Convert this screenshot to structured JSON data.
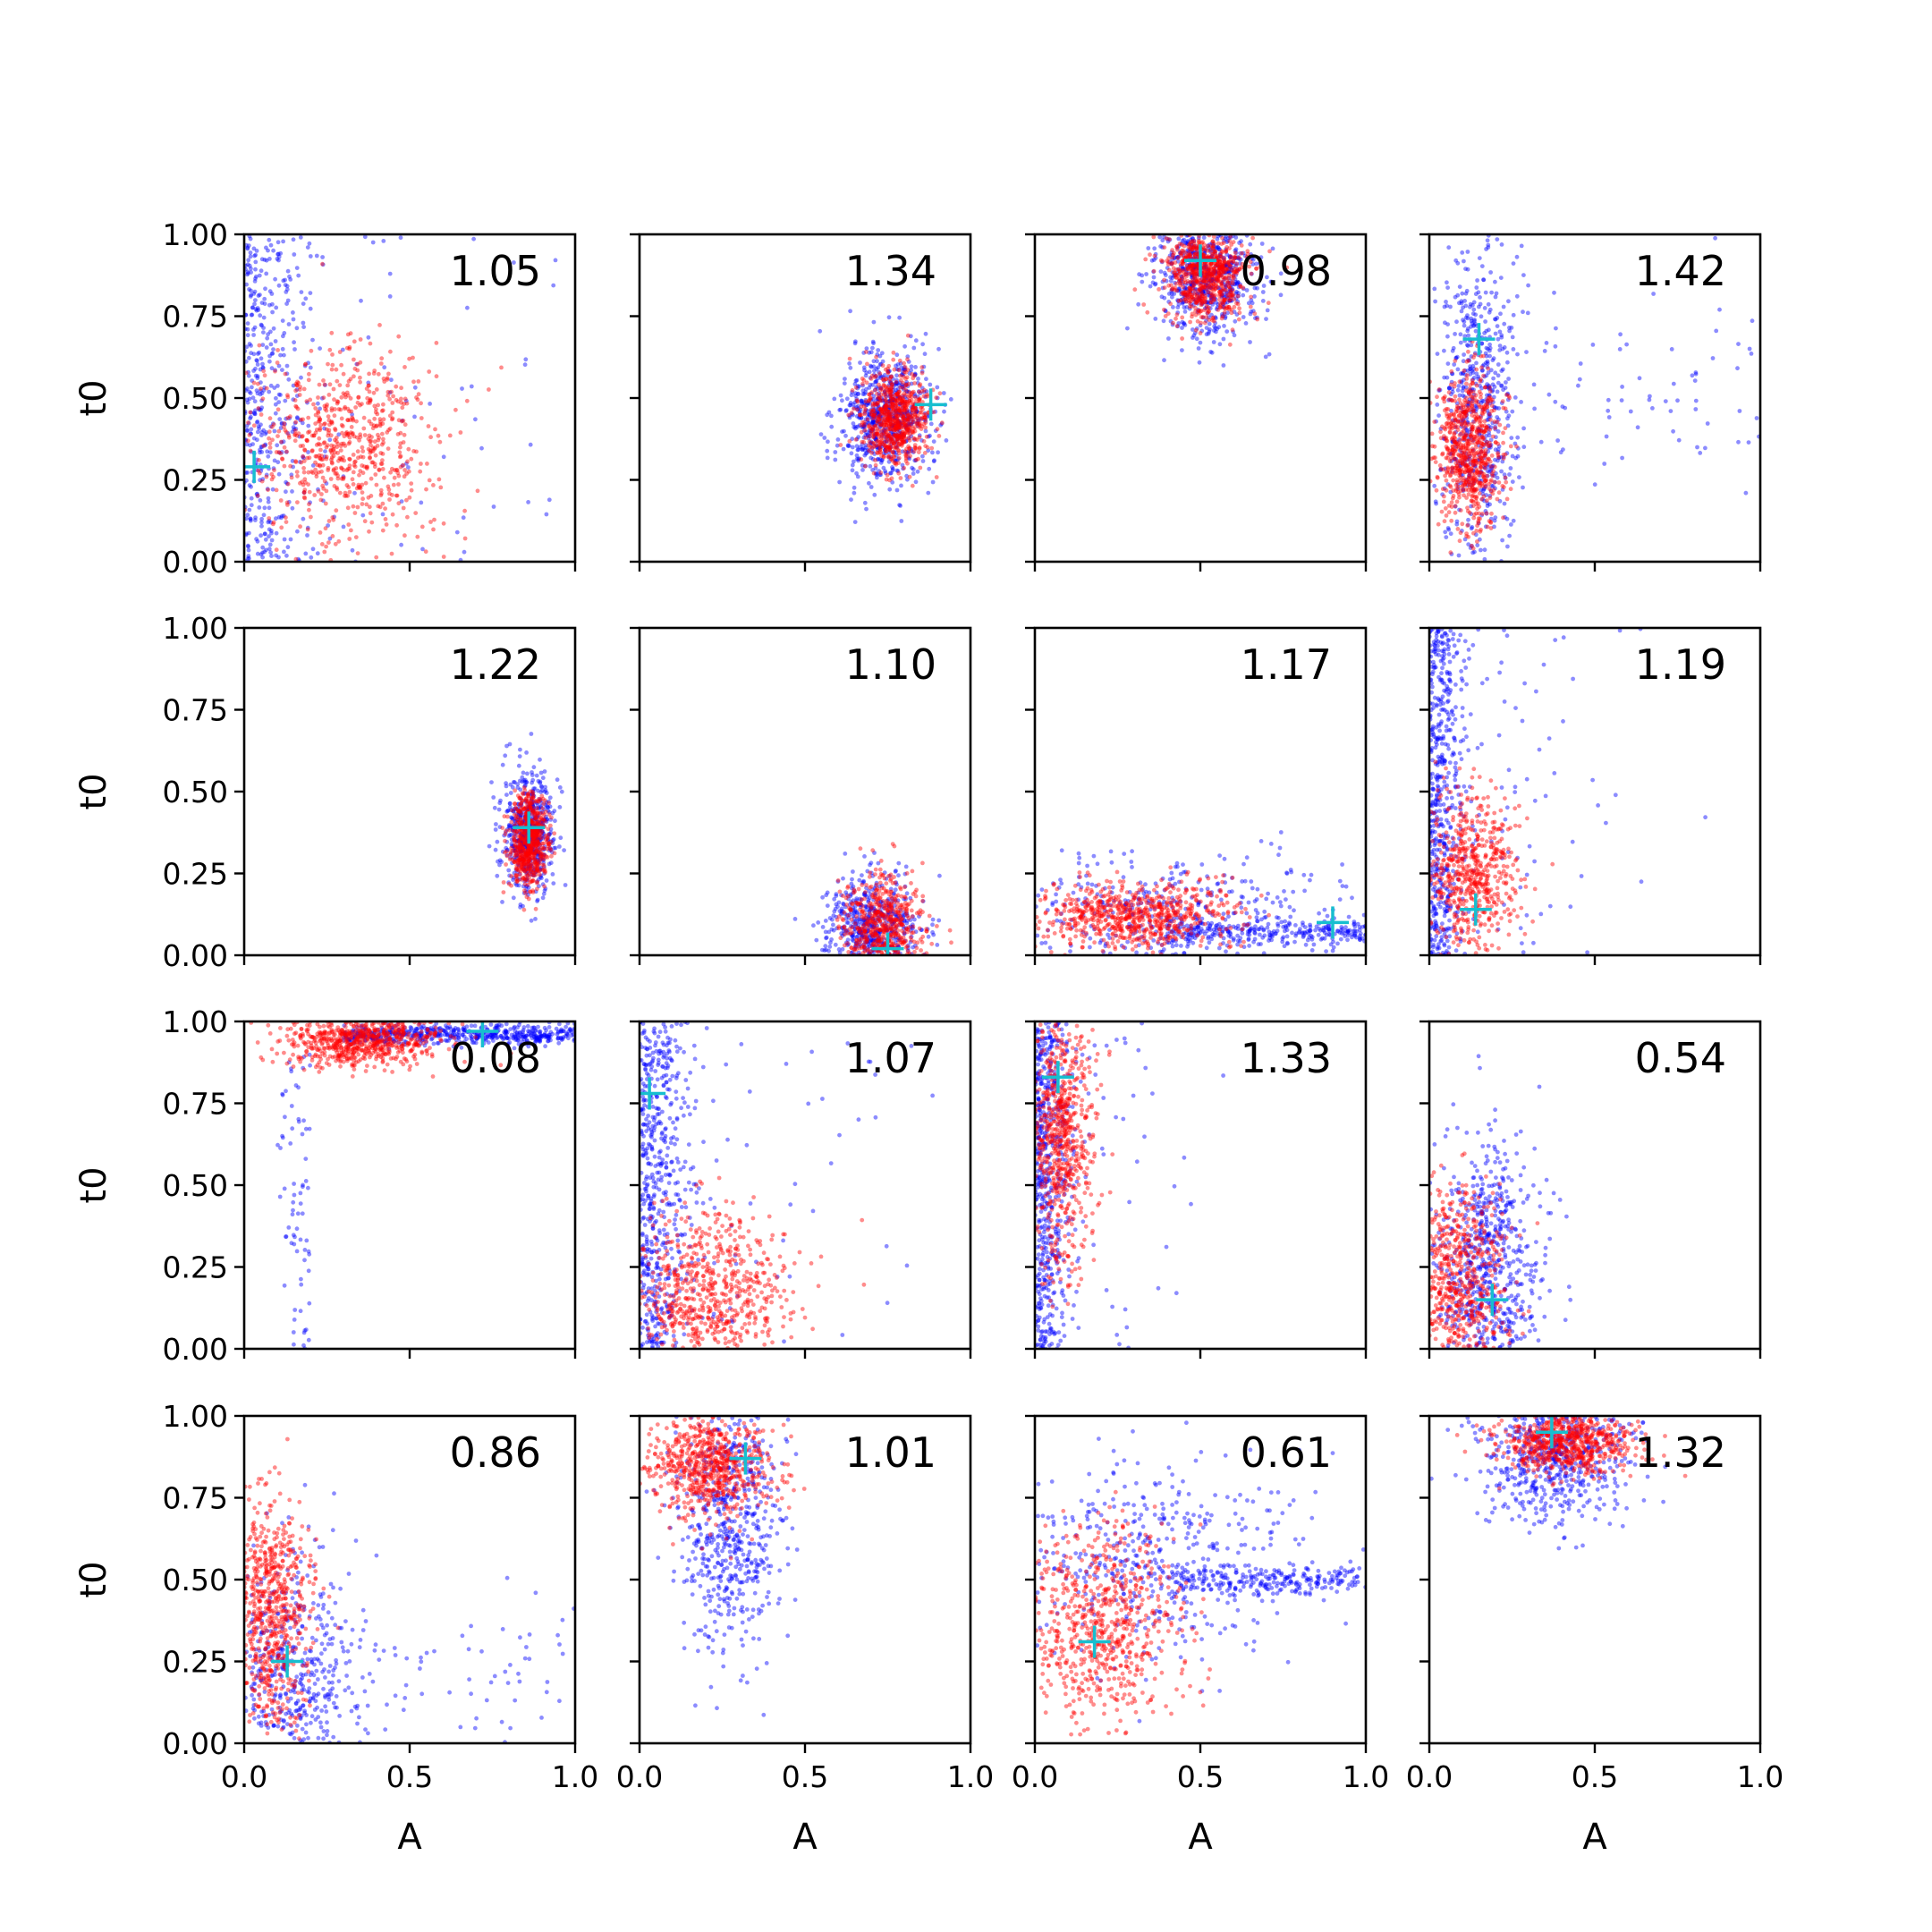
{
  "chart_data": {
    "type": "scatter",
    "layout": {
      "rows": 4,
      "cols": 4
    },
    "xlabel": "A",
    "ylabel": "t0",
    "xlim": [
      0,
      1
    ],
    "ylim": [
      0,
      1
    ],
    "xticks": [
      "0.0",
      "0.5",
      "1.0"
    ],
    "yticks": [
      "0.00",
      "0.25",
      "0.50",
      "0.75",
      "1.00"
    ],
    "colors": {
      "samples_a": "#0000ff",
      "samples_b": "#ff0000",
      "truth_marker": "#17becf"
    },
    "panels": [
      {
        "label": "1.05",
        "truth": [
          0.03,
          0.29
        ],
        "blue": {
          "cx": 0.12,
          "cy": 0.45,
          "sx": 0.2,
          "sy": 0.3,
          "n": 500,
          "shape": "vstrip",
          "edge": "left"
        },
        "red": {
          "cx": 0.3,
          "cy": 0.35,
          "sx": 0.14,
          "sy": 0.15,
          "n": 700
        }
      },
      {
        "label": "1.34",
        "truth": [
          0.88,
          0.48
        ],
        "blue": {
          "cx": 0.74,
          "cy": 0.44,
          "sx": 0.07,
          "sy": 0.1,
          "n": 700
        },
        "red": {
          "cx": 0.77,
          "cy": 0.44,
          "sx": 0.05,
          "sy": 0.07,
          "n": 700
        }
      },
      {
        "label": "0.98",
        "truth": [
          0.5,
          0.92
        ],
        "blue": {
          "cx": 0.52,
          "cy": 0.87,
          "sx": 0.08,
          "sy": 0.1,
          "n": 700
        },
        "red": {
          "cx": 0.52,
          "cy": 0.88,
          "sx": 0.06,
          "sy": 0.07,
          "n": 700
        }
      },
      {
        "label": "1.42",
        "truth": [
          0.15,
          0.68
        ],
        "blue": {
          "cx": 0.15,
          "cy": 0.5,
          "sx": 0.06,
          "sy": 0.25,
          "n": 700,
          "tail": "right"
        },
        "red": {
          "cx": 0.12,
          "cy": 0.35,
          "sx": 0.05,
          "sy": 0.12,
          "n": 700
        }
      },
      {
        "label": "1.22",
        "truth": [
          0.86,
          0.39
        ],
        "blue": {
          "cx": 0.86,
          "cy": 0.37,
          "sx": 0.04,
          "sy": 0.09,
          "n": 600
        },
        "red": {
          "cx": 0.86,
          "cy": 0.35,
          "sx": 0.03,
          "sy": 0.07,
          "n": 600
        }
      },
      {
        "label": "1.10",
        "truth": [
          0.75,
          0.02
        ],
        "blue": {
          "cx": 0.7,
          "cy": 0.08,
          "sx": 0.07,
          "sy": 0.08,
          "n": 600
        },
        "red": {
          "cx": 0.74,
          "cy": 0.08,
          "sx": 0.06,
          "sy": 0.08,
          "n": 600
        }
      },
      {
        "label": "1.17",
        "truth": [
          0.9,
          0.1
        ],
        "blue": {
          "cx": 0.4,
          "cy": 0.12,
          "sx": 0.3,
          "sy": 0.1,
          "n": 700,
          "shape": "hstrip"
        },
        "red": {
          "cx": 0.3,
          "cy": 0.12,
          "sx": 0.15,
          "sy": 0.05,
          "n": 700
        }
      },
      {
        "label": "1.19",
        "truth": [
          0.14,
          0.14
        ],
        "blue": {
          "cx": 0.08,
          "cy": 0.5,
          "sx": 0.1,
          "sy": 0.3,
          "n": 600,
          "shape": "vstrip",
          "edge": "left"
        },
        "red": {
          "cx": 0.13,
          "cy": 0.25,
          "sx": 0.07,
          "sy": 0.12,
          "n": 600
        }
      },
      {
        "label": "0.08",
        "truth": [
          0.72,
          0.97
        ],
        "blue": {
          "cx": 0.6,
          "cy": 0.97,
          "sx": 0.25,
          "sy": 0.02,
          "n": 600,
          "shape": "corner"
        },
        "red": {
          "cx": 0.35,
          "cy": 0.94,
          "sx": 0.12,
          "sy": 0.04,
          "n": 700
        }
      },
      {
        "label": "1.07",
        "truth": [
          0.03,
          0.78
        ],
        "blue": {
          "cx": 0.08,
          "cy": 0.4,
          "sx": 0.15,
          "sy": 0.3,
          "n": 600,
          "shape": "vstrip",
          "edge": "left"
        },
        "red": {
          "cx": 0.22,
          "cy": 0.17,
          "sx": 0.12,
          "sy": 0.12,
          "n": 700
        }
      },
      {
        "label": "1.33",
        "truth": [
          0.07,
          0.83
        ],
        "blue": {
          "cx": 0.05,
          "cy": 0.5,
          "sx": 0.1,
          "sy": 0.35,
          "n": 600,
          "shape": "vstrip",
          "edge": "left"
        },
        "red": {
          "cx": 0.08,
          "cy": 0.65,
          "sx": 0.05,
          "sy": 0.2,
          "n": 700
        }
      },
      {
        "label": "0.54",
        "truth": [
          0.19,
          0.15
        ],
        "blue": {
          "cx": 0.18,
          "cy": 0.25,
          "sx": 0.08,
          "sy": 0.2,
          "n": 700
        },
        "red": {
          "cx": 0.08,
          "cy": 0.2,
          "sx": 0.08,
          "sy": 0.15,
          "n": 700
        }
      },
      {
        "label": "0.86",
        "truth": [
          0.13,
          0.25
        ],
        "blue": {
          "cx": 0.15,
          "cy": 0.2,
          "sx": 0.1,
          "sy": 0.2,
          "n": 600,
          "tail": "right"
        },
        "red": {
          "cx": 0.08,
          "cy": 0.4,
          "sx": 0.06,
          "sy": 0.18,
          "n": 700
        }
      },
      {
        "label": "1.01",
        "truth": [
          0.32,
          0.87
        ],
        "blue": {
          "cx": 0.28,
          "cy": 0.7,
          "sx": 0.08,
          "sy": 0.2,
          "n": 600
        },
        "red": {
          "cx": 0.2,
          "cy": 0.85,
          "sx": 0.1,
          "sy": 0.08,
          "n": 700
        }
      },
      {
        "label": "0.61",
        "truth": [
          0.18,
          0.31
        ],
        "blue": {
          "cx": 0.35,
          "cy": 0.55,
          "sx": 0.25,
          "sy": 0.15,
          "n": 700,
          "shape": "hstrip"
        },
        "red": {
          "cx": 0.2,
          "cy": 0.35,
          "sx": 0.12,
          "sy": 0.15,
          "n": 700
        }
      },
      {
        "label": "1.32",
        "truth": [
          0.37,
          0.95
        ],
        "blue": {
          "cx": 0.38,
          "cy": 0.88,
          "sx": 0.12,
          "sy": 0.1,
          "n": 600
        },
        "red": {
          "cx": 0.42,
          "cy": 0.92,
          "sx": 0.1,
          "sy": 0.05,
          "n": 700
        }
      }
    ]
  }
}
